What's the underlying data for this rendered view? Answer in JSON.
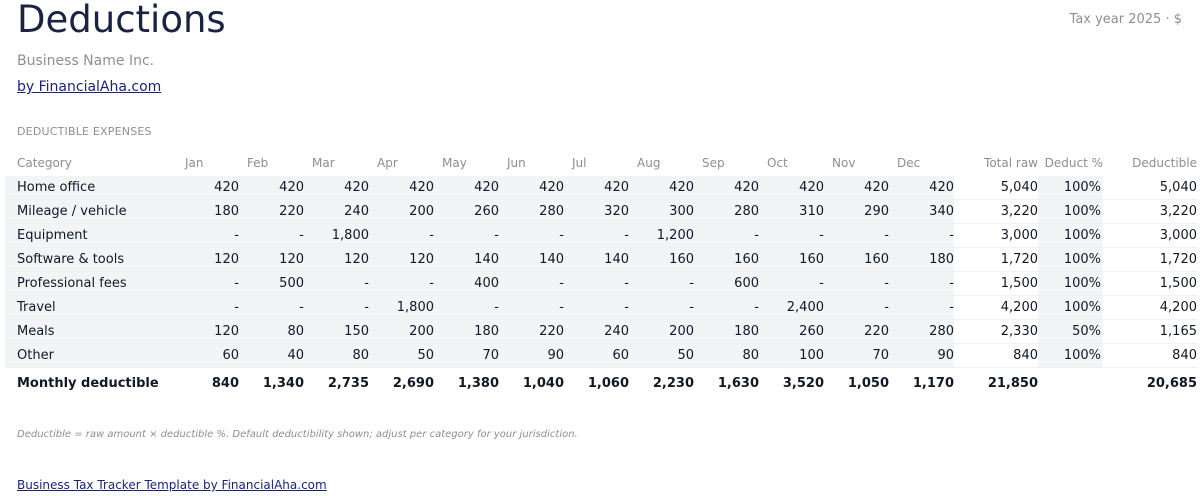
{
  "header": {
    "title": "Deductions",
    "tax_year": "Tax year 2025 · $",
    "business_name": "Business Name Inc.",
    "by_link": "by FinancialAha.com"
  },
  "section_label": "DEDUCTIBLE EXPENSES",
  "columns": {
    "category": "Category",
    "months": [
      "Jan",
      "Feb",
      "Mar",
      "Apr",
      "May",
      "Jun",
      "Jul",
      "Aug",
      "Sep",
      "Oct",
      "Nov",
      "Dec"
    ],
    "total_raw": "Total raw",
    "deduct_pct": "Deduct %",
    "deductible": "Deductible"
  },
  "rows": [
    {
      "category": "Home office",
      "months": [
        "420",
        "420",
        "420",
        "420",
        "420",
        "420",
        "420",
        "420",
        "420",
        "420",
        "420",
        "420"
      ],
      "total_raw": "5,040",
      "deduct_pct": "100%",
      "deductible": "5,040"
    },
    {
      "category": "Mileage / vehicle",
      "months": [
        "180",
        "220",
        "240",
        "200",
        "260",
        "280",
        "320",
        "300",
        "280",
        "310",
        "290",
        "340"
      ],
      "total_raw": "3,220",
      "deduct_pct": "100%",
      "deductible": "3,220"
    },
    {
      "category": "Equipment",
      "months": [
        "-",
        "-",
        "1,800",
        "-",
        "-",
        "-",
        "-",
        "1,200",
        "-",
        "-",
        "-",
        "-"
      ],
      "total_raw": "3,000",
      "deduct_pct": "100%",
      "deductible": "3,000"
    },
    {
      "category": "Software & tools",
      "months": [
        "120",
        "120",
        "120",
        "120",
        "140",
        "140",
        "140",
        "160",
        "160",
        "160",
        "160",
        "180"
      ],
      "total_raw": "1,720",
      "deduct_pct": "100%",
      "deductible": "1,720"
    },
    {
      "category": "Professional fees",
      "months": [
        "-",
        "500",
        "-",
        "-",
        "400",
        "-",
        "-",
        "-",
        "600",
        "-",
        "-",
        "-"
      ],
      "total_raw": "1,500",
      "deduct_pct": "100%",
      "deductible": "1,500"
    },
    {
      "category": "Travel",
      "months": [
        "-",
        "-",
        "-",
        "1,800",
        "-",
        "-",
        "-",
        "-",
        "-",
        "2,400",
        "-",
        "-"
      ],
      "total_raw": "4,200",
      "deduct_pct": "100%",
      "deductible": "4,200"
    },
    {
      "category": "Meals",
      "months": [
        "120",
        "80",
        "150",
        "200",
        "180",
        "220",
        "240",
        "200",
        "180",
        "260",
        "220",
        "280"
      ],
      "total_raw": "2,330",
      "deduct_pct": "50%",
      "deductible": "1,165"
    },
    {
      "category": "Other",
      "months": [
        "60",
        "40",
        "80",
        "50",
        "70",
        "90",
        "60",
        "50",
        "80",
        "100",
        "70",
        "90"
      ],
      "total_raw": "840",
      "deduct_pct": "100%",
      "deductible": "840"
    }
  ],
  "totals": {
    "label": "Monthly deductible",
    "months": [
      "840",
      "1,340",
      "2,735",
      "2,690",
      "1,380",
      "1,040",
      "1,060",
      "2,230",
      "1,630",
      "3,520",
      "1,050",
      "1,170"
    ],
    "total_raw": "21,850",
    "deduct_pct": "",
    "deductible": "20,685"
  },
  "footnote": "Deductible = raw amount × deductible %. Default deductibility shown; adjust per category for your jurisdiction.",
  "footer_link": "Business Tax Tracker Template by FinancialAha.com"
}
